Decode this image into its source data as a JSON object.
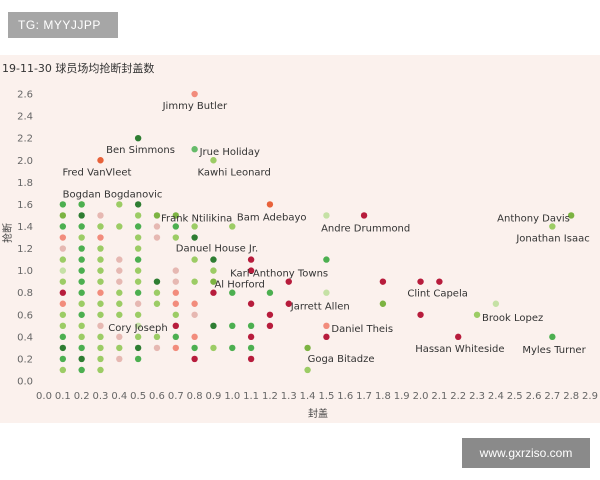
{
  "badge": {
    "text": "TG: MYYJJPP"
  },
  "watermark": {
    "text": "www.gxrziso.com"
  },
  "chart_data": {
    "type": "scatter",
    "title": "19-11-30 球员场均抢断封盖数",
    "xlabel": "封盖",
    "ylabel": "抢断",
    "xlim": [
      0,
      2.9
    ],
    "ylim": [
      0,
      2.7
    ],
    "x_ticks": [
      "0.0",
      "0.1",
      "0.2",
      "0.3",
      "0.4",
      "0.5",
      "0.6",
      "0.7",
      "0.8",
      "0.9",
      "1.0",
      "1.1",
      "1.2",
      "1.3",
      "1.4",
      "1.5",
      "1.6",
      "1.7",
      "1.8",
      "1.9",
      "2.0",
      "2.1",
      "2.2",
      "2.3",
      "2.4",
      "2.5",
      "2.6",
      "2.7",
      "2.8",
      "2.9"
    ],
    "y_ticks": [
      "0.0",
      "0.2",
      "0.4",
      "0.6",
      "0.8",
      "1.0",
      "1.2",
      "1.4",
      "1.6",
      "1.8",
      "2.0",
      "2.2",
      "2.4",
      "2.6"
    ],
    "grid": false,
    "colors": {
      "dark_green": "#2e7d32",
      "green": "#4caf50",
      "light_green": "#9ccc65",
      "pale_green": "#c5e1a5",
      "pale_pink": "#e6b8b2",
      "salmon": "#f28c7c",
      "dark_red": "#b71c3c",
      "orange_red": "#e8623a"
    },
    "labeled_points": [
      {
        "label": "Jimmy Butler",
        "x": 0.8,
        "y": 2.6,
        "color": "#f28c7c"
      },
      {
        "label": "Ben Simmons",
        "x": 0.5,
        "y": 2.2,
        "color": "#2e7d32"
      },
      {
        "label": "Jrue Holiday",
        "x": 0.8,
        "y": 2.1,
        "color": "#66bb6a"
      },
      {
        "label": "Fred VanVleet",
        "x": 0.3,
        "y": 2.0,
        "color": "#e8623a"
      },
      {
        "label": "Kawhi Leonard",
        "x": 0.9,
        "y": 2.0,
        "color": "#9ccc65"
      },
      {
        "label": "Bogdan Bogdanovic",
        "x": 0.2,
        "y": 1.6,
        "color": "#4caf50"
      },
      {
        "label": "Frank Ntilikina",
        "x": 0.6,
        "y": 1.5,
        "color": "#7cb342"
      },
      {
        "label": "Bam Adebayo",
        "x": 1.2,
        "y": 1.6,
        "color": "#e8623a"
      },
      {
        "label": "Andre Drummond",
        "x": 1.7,
        "y": 1.5,
        "color": "#b71c3c"
      },
      {
        "label": "Anthony Davis",
        "x": 2.8,
        "y": 1.5,
        "color": "#7cb342"
      },
      {
        "label": "Jonathan Isaac",
        "x": 2.7,
        "y": 1.4,
        "color": "#9ccc65"
      },
      {
        "label": "Danuel House Jr.",
        "x": 0.7,
        "y": 1.3,
        "color": "#9ccc65"
      },
      {
        "label": "Karl-Anthony Towns",
        "x": 1.1,
        "y": 1.0,
        "color": "#b71c3c"
      },
      {
        "label": "Al Horford",
        "x": 0.9,
        "y": 0.9,
        "color": "#7cb342"
      },
      {
        "label": "Clint Capela",
        "x": 2.1,
        "y": 0.9,
        "color": "#b71c3c"
      },
      {
        "label": "Jarrett Allen",
        "x": 1.3,
        "y": 0.7,
        "color": "#b71c3c"
      },
      {
        "label": "Brook Lopez",
        "x": 2.3,
        "y": 0.6,
        "color": "#9ccc65"
      },
      {
        "label": "Cory Joseph",
        "x": 0.4,
        "y": 0.6,
        "color": "#9ccc65"
      },
      {
        "label": "Daniel Theis",
        "x": 1.5,
        "y": 0.5,
        "color": "#f28c7c"
      },
      {
        "label": "Hassan Whiteside",
        "x": 2.2,
        "y": 0.4,
        "color": "#b71c3c"
      },
      {
        "label": "Myles Turner",
        "x": 2.7,
        "y": 0.4,
        "color": "#4caf50"
      },
      {
        "label": "Goga Bitadze",
        "x": 1.4,
        "y": 0.3,
        "color": "#7cb342"
      }
    ],
    "points": [
      {
        "x": 0.1,
        "y": 1.6,
        "c": "#4caf50"
      },
      {
        "x": 0.2,
        "y": 1.6,
        "c": "#9ccc65"
      },
      {
        "x": 0.4,
        "y": 1.6,
        "c": "#9ccc65"
      },
      {
        "x": 0.5,
        "y": 1.6,
        "c": "#2e7d32"
      },
      {
        "x": 0.1,
        "y": 1.5,
        "c": "#7cb342"
      },
      {
        "x": 0.2,
        "y": 1.5,
        "c": "#2e7d32"
      },
      {
        "x": 0.3,
        "y": 1.5,
        "c": "#e6b8b2"
      },
      {
        "x": 0.5,
        "y": 1.5,
        "c": "#9ccc65"
      },
      {
        "x": 0.7,
        "y": 1.5,
        "c": "#7cb342"
      },
      {
        "x": 1.5,
        "y": 1.5,
        "c": "#c5e1a5"
      },
      {
        "x": 0.1,
        "y": 1.4,
        "c": "#4caf50"
      },
      {
        "x": 0.2,
        "y": 1.4,
        "c": "#4caf50"
      },
      {
        "x": 0.3,
        "y": 1.4,
        "c": "#9ccc65"
      },
      {
        "x": 0.4,
        "y": 1.4,
        "c": "#9ccc65"
      },
      {
        "x": 0.5,
        "y": 1.4,
        "c": "#4caf50"
      },
      {
        "x": 0.6,
        "y": 1.4,
        "c": "#e6b8b2"
      },
      {
        "x": 0.7,
        "y": 1.4,
        "c": "#4caf50"
      },
      {
        "x": 0.8,
        "y": 1.4,
        "c": "#9ccc65"
      },
      {
        "x": 1.0,
        "y": 1.4,
        "c": "#9ccc65"
      },
      {
        "x": 0.1,
        "y": 1.3,
        "c": "#f28c7c"
      },
      {
        "x": 0.2,
        "y": 1.3,
        "c": "#9ccc65"
      },
      {
        "x": 0.3,
        "y": 1.3,
        "c": "#f28c7c"
      },
      {
        "x": 0.5,
        "y": 1.3,
        "c": "#9ccc65"
      },
      {
        "x": 0.6,
        "y": 1.3,
        "c": "#e6b8b2"
      },
      {
        "x": 0.8,
        "y": 1.3,
        "c": "#2e7d32"
      },
      {
        "x": 0.1,
        "y": 1.2,
        "c": "#e6b8b2"
      },
      {
        "x": 0.2,
        "y": 1.2,
        "c": "#4caf50"
      },
      {
        "x": 0.3,
        "y": 1.2,
        "c": "#9ccc65"
      },
      {
        "x": 0.5,
        "y": 1.2,
        "c": "#9ccc65"
      },
      {
        "x": 0.1,
        "y": 1.1,
        "c": "#9ccc65"
      },
      {
        "x": 0.2,
        "y": 1.1,
        "c": "#4caf50"
      },
      {
        "x": 0.3,
        "y": 1.1,
        "c": "#9ccc65"
      },
      {
        "x": 0.4,
        "y": 1.1,
        "c": "#e6b8b2"
      },
      {
        "x": 0.5,
        "y": 1.1,
        "c": "#4caf50"
      },
      {
        "x": 0.8,
        "y": 1.1,
        "c": "#9ccc65"
      },
      {
        "x": 0.9,
        "y": 1.1,
        "c": "#2e7d32"
      },
      {
        "x": 1.1,
        "y": 1.1,
        "c": "#b71c3c"
      },
      {
        "x": 1.5,
        "y": 1.1,
        "c": "#4caf50"
      },
      {
        "x": 0.1,
        "y": 1.0,
        "c": "#c5e1a5"
      },
      {
        "x": 0.2,
        "y": 1.0,
        "c": "#4caf50"
      },
      {
        "x": 0.3,
        "y": 1.0,
        "c": "#9ccc65"
      },
      {
        "x": 0.4,
        "y": 1.0,
        "c": "#e6b8b2"
      },
      {
        "x": 0.5,
        "y": 1.0,
        "c": "#9ccc65"
      },
      {
        "x": 0.7,
        "y": 1.0,
        "c": "#e6b8b2"
      },
      {
        "x": 0.9,
        "y": 1.0,
        "c": "#9ccc65"
      },
      {
        "x": 0.1,
        "y": 0.9,
        "c": "#9ccc65"
      },
      {
        "x": 0.2,
        "y": 0.9,
        "c": "#4caf50"
      },
      {
        "x": 0.3,
        "y": 0.9,
        "c": "#9ccc65"
      },
      {
        "x": 0.4,
        "y": 0.9,
        "c": "#e6b8b2"
      },
      {
        "x": 0.5,
        "y": 0.9,
        "c": "#9ccc65"
      },
      {
        "x": 0.6,
        "y": 0.9,
        "c": "#2e7d32"
      },
      {
        "x": 0.7,
        "y": 0.9,
        "c": "#e6b8b2"
      },
      {
        "x": 0.8,
        "y": 0.9,
        "c": "#9ccc65"
      },
      {
        "x": 1.3,
        "y": 0.9,
        "c": "#b71c3c"
      },
      {
        "x": 1.8,
        "y": 0.9,
        "c": "#b71c3c"
      },
      {
        "x": 2.0,
        "y": 0.9,
        "c": "#b71c3c"
      },
      {
        "x": 0.1,
        "y": 0.8,
        "c": "#b71c3c"
      },
      {
        "x": 0.2,
        "y": 0.8,
        "c": "#4caf50"
      },
      {
        "x": 0.3,
        "y": 0.8,
        "c": "#f28c7c"
      },
      {
        "x": 0.4,
        "y": 0.8,
        "c": "#9ccc65"
      },
      {
        "x": 0.5,
        "y": 0.8,
        "c": "#4caf50"
      },
      {
        "x": 0.6,
        "y": 0.8,
        "c": "#9ccc65"
      },
      {
        "x": 0.7,
        "y": 0.8,
        "c": "#f28c7c"
      },
      {
        "x": 0.9,
        "y": 0.8,
        "c": "#b71c3c"
      },
      {
        "x": 1.0,
        "y": 0.8,
        "c": "#4caf50"
      },
      {
        "x": 1.2,
        "y": 0.8,
        "c": "#4caf50"
      },
      {
        "x": 1.5,
        "y": 0.8,
        "c": "#c5e1a5"
      },
      {
        "x": 0.1,
        "y": 0.7,
        "c": "#f28c7c"
      },
      {
        "x": 0.2,
        "y": 0.7,
        "c": "#9ccc65"
      },
      {
        "x": 0.3,
        "y": 0.7,
        "c": "#9ccc65"
      },
      {
        "x": 0.4,
        "y": 0.7,
        "c": "#9ccc65"
      },
      {
        "x": 0.5,
        "y": 0.7,
        "c": "#e6b8b2"
      },
      {
        "x": 0.6,
        "y": 0.7,
        "c": "#9ccc65"
      },
      {
        "x": 0.7,
        "y": 0.7,
        "c": "#f28c7c"
      },
      {
        "x": 0.8,
        "y": 0.7,
        "c": "#f28c7c"
      },
      {
        "x": 1.1,
        "y": 0.7,
        "c": "#b71c3c"
      },
      {
        "x": 1.8,
        "y": 0.7,
        "c": "#7cb342"
      },
      {
        "x": 2.4,
        "y": 0.7,
        "c": "#c5e1a5"
      },
      {
        "x": 0.1,
        "y": 0.6,
        "c": "#9ccc65"
      },
      {
        "x": 0.2,
        "y": 0.6,
        "c": "#4caf50"
      },
      {
        "x": 0.3,
        "y": 0.6,
        "c": "#9ccc65"
      },
      {
        "x": 0.5,
        "y": 0.6,
        "c": "#9ccc65"
      },
      {
        "x": 0.7,
        "y": 0.6,
        "c": "#9ccc65"
      },
      {
        "x": 0.8,
        "y": 0.6,
        "c": "#e6b8b2"
      },
      {
        "x": 1.2,
        "y": 0.6,
        "c": "#b71c3c"
      },
      {
        "x": 2.0,
        "y": 0.6,
        "c": "#b71c3c"
      },
      {
        "x": 0.1,
        "y": 0.5,
        "c": "#9ccc65"
      },
      {
        "x": 0.2,
        "y": 0.5,
        "c": "#9ccc65"
      },
      {
        "x": 0.3,
        "y": 0.5,
        "c": "#e6b8b2"
      },
      {
        "x": 0.5,
        "y": 0.5,
        "c": "#c5e1a5"
      },
      {
        "x": 0.7,
        "y": 0.5,
        "c": "#b71c3c"
      },
      {
        "x": 0.9,
        "y": 0.5,
        "c": "#2e7d32"
      },
      {
        "x": 1.0,
        "y": 0.5,
        "c": "#4caf50"
      },
      {
        "x": 1.1,
        "y": 0.5,
        "c": "#4caf50"
      },
      {
        "x": 1.2,
        "y": 0.5,
        "c": "#b71c3c"
      },
      {
        "x": 0.1,
        "y": 0.4,
        "c": "#4caf50"
      },
      {
        "x": 0.2,
        "y": 0.4,
        "c": "#9ccc65"
      },
      {
        "x": 0.3,
        "y": 0.4,
        "c": "#9ccc65"
      },
      {
        "x": 0.4,
        "y": 0.4,
        "c": "#e6b8b2"
      },
      {
        "x": 0.5,
        "y": 0.4,
        "c": "#9ccc65"
      },
      {
        "x": 0.6,
        "y": 0.4,
        "c": "#9ccc65"
      },
      {
        "x": 0.7,
        "y": 0.4,
        "c": "#4caf50"
      },
      {
        "x": 0.8,
        "y": 0.4,
        "c": "#f28c7c"
      },
      {
        "x": 1.1,
        "y": 0.4,
        "c": "#b71c3c"
      },
      {
        "x": 1.5,
        "y": 0.4,
        "c": "#b71c3c"
      },
      {
        "x": 0.1,
        "y": 0.3,
        "c": "#2e7d32"
      },
      {
        "x": 0.2,
        "y": 0.3,
        "c": "#4caf50"
      },
      {
        "x": 0.3,
        "y": 0.3,
        "c": "#9ccc65"
      },
      {
        "x": 0.4,
        "y": 0.3,
        "c": "#9ccc65"
      },
      {
        "x": 0.5,
        "y": 0.3,
        "c": "#2e7d32"
      },
      {
        "x": 0.6,
        "y": 0.3,
        "c": "#e6b8b2"
      },
      {
        "x": 0.7,
        "y": 0.3,
        "c": "#f28c7c"
      },
      {
        "x": 0.8,
        "y": 0.3,
        "c": "#4caf50"
      },
      {
        "x": 0.9,
        "y": 0.3,
        "c": "#9ccc65"
      },
      {
        "x": 1.0,
        "y": 0.3,
        "c": "#4caf50"
      },
      {
        "x": 1.1,
        "y": 0.3,
        "c": "#4caf50"
      },
      {
        "x": 0.1,
        "y": 0.2,
        "c": "#4caf50"
      },
      {
        "x": 0.2,
        "y": 0.2,
        "c": "#2e7d32"
      },
      {
        "x": 0.3,
        "y": 0.2,
        "c": "#9ccc65"
      },
      {
        "x": 0.4,
        "y": 0.2,
        "c": "#e6b8b2"
      },
      {
        "x": 0.5,
        "y": 0.2,
        "c": "#4caf50"
      },
      {
        "x": 0.8,
        "y": 0.2,
        "c": "#b71c3c"
      },
      {
        "x": 1.1,
        "y": 0.2,
        "c": "#b71c3c"
      },
      {
        "x": 0.1,
        "y": 0.1,
        "c": "#9ccc65"
      },
      {
        "x": 0.2,
        "y": 0.1,
        "c": "#4caf50"
      },
      {
        "x": 0.3,
        "y": 0.1,
        "c": "#9ccc65"
      },
      {
        "x": 1.4,
        "y": 0.1,
        "c": "#9ccc65"
      }
    ]
  }
}
